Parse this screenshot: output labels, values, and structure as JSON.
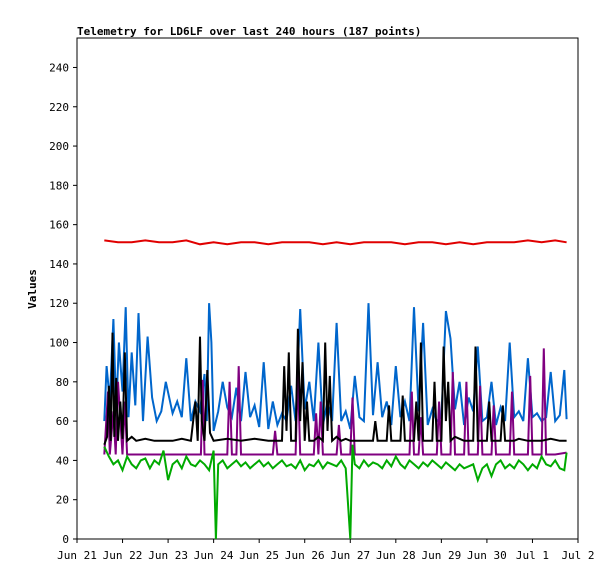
{
  "chart_data": {
    "type": "line",
    "title": "Telemetry for LD6LF over last 240 hours (187 points)",
    "ylabel": "Values",
    "xlabel": "",
    "ylim": [
      0,
      255
    ],
    "grid": false,
    "y_ticks": [
      0,
      20,
      40,
      60,
      80,
      100,
      120,
      140,
      160,
      180,
      200,
      220,
      240
    ],
    "x_ticks": [
      {
        "t": 0,
        "label": "Jun 21"
      },
      {
        "t": 1,
        "label": "Jun 22"
      },
      {
        "t": 2,
        "label": "Jun 23"
      },
      {
        "t": 3,
        "label": "Jun 24"
      },
      {
        "t": 4,
        "label": "Jun 25"
      },
      {
        "t": 5,
        "label": "Jun 26"
      },
      {
        "t": 6,
        "label": "Jun 27"
      },
      {
        "t": 7,
        "label": "Jun 28"
      },
      {
        "t": 8,
        "label": "Jun 29"
      },
      {
        "t": 9,
        "label": "Jun 30"
      },
      {
        "t": 10,
        "label": "Jul 1"
      },
      {
        "t": 11,
        "label": "Jul 2"
      }
    ],
    "xlim": [
      0,
      11
    ],
    "series": [
      {
        "color": "#e00000",
        "x": [
          0.6,
          0.9,
          1.2,
          1.5,
          1.8,
          2.1,
          2.4,
          2.7,
          3.0,
          3.3,
          3.6,
          3.9,
          4.2,
          4.5,
          4.8,
          5.1,
          5.4,
          5.7,
          6.0,
          6.3,
          6.6,
          6.9,
          7.2,
          7.5,
          7.8,
          8.1,
          8.4,
          8.7,
          9.0,
          9.3,
          9.6,
          9.9,
          10.2,
          10.5,
          10.75
        ],
        "values": [
          152,
          151,
          151,
          152,
          151,
          151,
          152,
          150,
          151,
          150,
          151,
          151,
          150,
          151,
          151,
          151,
          150,
          151,
          150,
          151,
          151,
          151,
          150,
          151,
          151,
          150,
          151,
          150,
          151,
          151,
          151,
          152,
          151,
          152,
          151
        ]
      },
      {
        "color": "#0066cc",
        "x": [
          0.6,
          0.65,
          0.72,
          0.8,
          0.86,
          0.92,
          1.0,
          1.07,
          1.13,
          1.2,
          1.28,
          1.35,
          1.45,
          1.55,
          1.65,
          1.75,
          1.85,
          1.95,
          2.1,
          2.2,
          2.3,
          2.4,
          2.5,
          2.6,
          2.7,
          2.8,
          2.85,
          2.9,
          2.95,
          3.0,
          3.1,
          3.2,
          3.3,
          3.4,
          3.5,
          3.6,
          3.7,
          3.8,
          3.9,
          4.0,
          4.1,
          4.2,
          4.3,
          4.4,
          4.5,
          4.6,
          4.7,
          4.8,
          4.9,
          5.0,
          5.1,
          5.2,
          5.3,
          5.4,
          5.5,
          5.6,
          5.7,
          5.8,
          5.9,
          6.0,
          6.1,
          6.2,
          6.3,
          6.4,
          6.5,
          6.6,
          6.7,
          6.8,
          6.9,
          7.0,
          7.1,
          7.2,
          7.3,
          7.4,
          7.5,
          7.6,
          7.7,
          7.8,
          7.9,
          8.0,
          8.1,
          8.2,
          8.3,
          8.4,
          8.5,
          8.6,
          8.7,
          8.8,
          8.9,
          9.0,
          9.1,
          9.2,
          9.3,
          9.4,
          9.5,
          9.6,
          9.7,
          9.8,
          9.9,
          10.0,
          10.1,
          10.2,
          10.3,
          10.4,
          10.5,
          10.6,
          10.7,
          10.75
        ],
        "values": [
          60,
          88,
          70,
          112,
          65,
          100,
          75,
          118,
          62,
          95,
          68,
          115,
          60,
          103,
          72,
          60,
          65,
          80,
          64,
          70,
          62,
          92,
          60,
          70,
          65,
          84,
          60,
          120,
          100,
          55,
          65,
          80,
          67,
          62,
          77,
          60,
          85,
          62,
          68,
          57,
          90,
          56,
          70,
          58,
          64,
          60,
          78,
          60,
          117,
          66,
          80,
          60,
          100,
          58,
          70,
          60,
          110,
          60,
          65,
          56,
          83,
          62,
          60,
          120,
          63,
          90,
          62,
          70,
          58,
          88,
          62,
          70,
          60,
          118,
          65,
          110,
          58,
          66,
          60,
          62,
          116,
          102,
          66,
          80,
          58,
          72,
          65,
          98,
          60,
          62,
          80,
          58,
          67,
          60,
          100,
          62,
          65,
          60,
          92,
          62,
          64,
          60,
          62,
          85,
          60,
          63,
          86,
          61
        ]
      },
      {
        "color": "#800080",
        "x": [
          0.6,
          0.68,
          0.72,
          0.8,
          0.85,
          0.9,
          1.0,
          1.05,
          1.1,
          1.5,
          2.0,
          2.5,
          2.72,
          2.76,
          2.8,
          3.2,
          3.3,
          3.35,
          3.4,
          3.5,
          3.55,
          3.6,
          4.0,
          4.3,
          4.35,
          4.4,
          4.8,
          4.85,
          4.9,
          5.2,
          5.25,
          5.3,
          5.35,
          5.4,
          5.7,
          5.75,
          5.8,
          6.0,
          6.05,
          6.1,
          6.5,
          6.9,
          7.3,
          7.35,
          7.4,
          7.5,
          7.55,
          7.6,
          7.9,
          7.95,
          8.0,
          8.2,
          8.25,
          8.3,
          8.5,
          8.55,
          8.6,
          8.8,
          8.85,
          8.9,
          9.1,
          9.15,
          9.2,
          9.5,
          9.55,
          9.6,
          9.9,
          9.95,
          10.0,
          10.2,
          10.25,
          10.3,
          10.5,
          10.75
        ],
        "values": [
          43,
          75,
          43,
          65,
          43,
          80,
          43,
          70,
          43,
          43,
          43,
          43,
          43,
          81,
          43,
          43,
          43,
          80,
          43,
          43,
          88,
          43,
          43,
          43,
          55,
          43,
          43,
          84,
          43,
          43,
          64,
          43,
          70,
          43,
          43,
          58,
          43,
          43,
          72,
          43,
          43,
          43,
          43,
          75,
          43,
          43,
          62,
          43,
          43,
          70,
          43,
          43,
          85,
          43,
          43,
          80,
          43,
          43,
          78,
          43,
          43,
          68,
          43,
          43,
          75,
          43,
          43,
          83,
          43,
          43,
          97,
          43,
          43,
          44
        ]
      },
      {
        "color": "#000000",
        "x": [
          0.6,
          0.66,
          0.7,
          0.74,
          0.78,
          0.82,
          0.86,
          0.9,
          0.95,
          1.0,
          1.05,
          1.1,
          1.2,
          1.3,
          1.5,
          1.7,
          1.9,
          2.1,
          2.3,
          2.5,
          2.6,
          2.65,
          2.7,
          2.74,
          2.8,
          2.86,
          2.92,
          3.0,
          3.3,
          3.6,
          3.9,
          4.2,
          4.5,
          4.55,
          4.6,
          4.65,
          4.7,
          4.8,
          4.85,
          4.9,
          4.95,
          5.0,
          5.05,
          5.1,
          5.2,
          5.3,
          5.4,
          5.45,
          5.5,
          5.55,
          5.6,
          5.7,
          5.8,
          5.9,
          6.0,
          6.1,
          6.3,
          6.5,
          6.55,
          6.6,
          6.8,
          6.85,
          6.9,
          7.1,
          7.15,
          7.2,
          7.4,
          7.45,
          7.5,
          7.55,
          7.6,
          7.8,
          7.85,
          7.9,
          8.0,
          8.05,
          8.1,
          8.15,
          8.2,
          8.3,
          8.5,
          8.7,
          8.75,
          8.8,
          9.0,
          9.05,
          9.1,
          9.3,
          9.35,
          9.4,
          9.6,
          9.7,
          9.9,
          10.2,
          10.4,
          10.6,
          10.75
        ],
        "values": [
          48,
          52,
          78,
          50,
          105,
          52,
          82,
          50,
          70,
          51,
          95,
          50,
          52,
          50,
          51,
          50,
          50,
          50,
          51,
          50,
          70,
          50,
          103,
          60,
          50,
          86,
          54,
          50,
          51,
          50,
          51,
          50,
          50,
          88,
          55,
          95,
          50,
          50,
          107,
          60,
          90,
          50,
          70,
          50,
          50,
          52,
          50,
          100,
          55,
          83,
          50,
          52,
          50,
          51,
          50,
          50,
          50,
          50,
          60,
          50,
          50,
          68,
          50,
          50,
          73,
          50,
          50,
          70,
          50,
          100,
          50,
          50,
          80,
          50,
          50,
          98,
          60,
          80,
          50,
          52,
          50,
          50,
          98,
          50,
          50,
          70,
          50,
          50,
          68,
          50,
          50,
          51,
          50,
          50,
          51,
          50,
          50
        ]
      },
      {
        "color": "#00aa00",
        "x": [
          0.6,
          0.7,
          0.8,
          0.9,
          1.0,
          1.1,
          1.2,
          1.3,
          1.4,
          1.5,
          1.6,
          1.7,
          1.8,
          1.9,
          2.0,
          2.1,
          2.2,
          2.3,
          2.4,
          2.5,
          2.6,
          2.7,
          2.8,
          2.9,
          3.0,
          3.05,
          3.1,
          3.2,
          3.3,
          3.4,
          3.5,
          3.6,
          3.7,
          3.8,
          3.9,
          4.0,
          4.1,
          4.2,
          4.3,
          4.4,
          4.5,
          4.6,
          4.7,
          4.8,
          4.9,
          5.0,
          5.1,
          5.2,
          5.3,
          5.4,
          5.5,
          5.6,
          5.7,
          5.8,
          5.9,
          6.0,
          6.05,
          6.1,
          6.2,
          6.3,
          6.4,
          6.5,
          6.6,
          6.7,
          6.8,
          6.9,
          7.0,
          7.1,
          7.2,
          7.3,
          7.4,
          7.5,
          7.6,
          7.7,
          7.8,
          7.9,
          8.0,
          8.1,
          8.2,
          8.3,
          8.4,
          8.5,
          8.6,
          8.7,
          8.8,
          8.9,
          9.0,
          9.1,
          9.2,
          9.3,
          9.4,
          9.5,
          9.6,
          9.7,
          9.8,
          9.9,
          10.0,
          10.1,
          10.2,
          10.3,
          10.4,
          10.5,
          10.6,
          10.7,
          10.75
        ],
        "values": [
          47,
          42,
          38,
          40,
          35,
          42,
          38,
          36,
          40,
          41,
          36,
          40,
          38,
          45,
          30,
          38,
          40,
          36,
          42,
          38,
          37,
          40,
          38,
          35,
          45,
          0,
          38,
          40,
          36,
          38,
          40,
          37,
          39,
          36,
          38,
          40,
          37,
          39,
          36,
          38,
          40,
          37,
          38,
          36,
          40,
          35,
          38,
          37,
          40,
          36,
          39,
          38,
          37,
          40,
          36,
          0,
          48,
          38,
          36,
          40,
          37,
          39,
          38,
          36,
          40,
          37,
          42,
          38,
          36,
          40,
          38,
          36,
          39,
          37,
          40,
          38,
          36,
          39,
          37,
          35,
          38,
          36,
          37,
          38,
          30,
          36,
          38,
          32,
          38,
          40,
          36,
          38,
          36,
          40,
          38,
          35,
          38,
          36,
          42,
          38,
          37,
          40,
          36,
          35,
          44
        ]
      }
    ]
  }
}
